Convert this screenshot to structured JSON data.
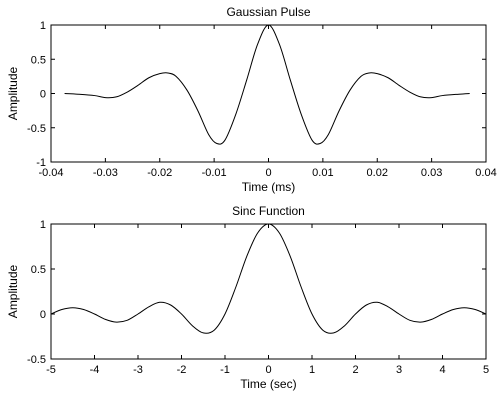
{
  "chart_data": [
    {
      "type": "line",
      "title": "Gaussian Pulse",
      "xlabel": "Time (ms)",
      "ylabel": "Amplitude",
      "xlim": [
        -0.04,
        0.04
      ],
      "ylim": [
        -1,
        1
      ],
      "xticks": [
        -0.04,
        -0.03,
        -0.02,
        -0.01,
        0,
        0.01,
        0.02,
        0.03,
        0.04
      ],
      "xtick_labels": [
        "-0.04",
        "-0.03",
        "-0.02",
        "-0.01",
        "0",
        "0.01",
        "0.02",
        "0.03",
        "0.04"
      ],
      "yticks": [
        -1,
        -0.5,
        0,
        0.5,
        1
      ],
      "ytick_labels": [
        "-1",
        "-0.5",
        "0",
        "0.5",
        "1"
      ],
      "grid": false,
      "series": [
        {
          "x": [
            -0.0375,
            -0.035,
            -0.032,
            -0.03,
            -0.028,
            -0.026,
            -0.024,
            -0.022,
            -0.02,
            -0.0185,
            -0.017,
            -0.015,
            -0.013,
            -0.011,
            -0.0095,
            -0.008,
            -0.006,
            -0.004,
            -0.002,
            0,
            0.002,
            0.004,
            0.006,
            0.008,
            0.0095,
            0.011,
            0.013,
            0.015,
            0.017,
            0.0185,
            0.02,
            0.022,
            0.024,
            0.026,
            0.028,
            0.03,
            0.032,
            0.035,
            0.037
          ],
          "y": [
            0.0,
            -0.01,
            -0.03,
            -0.06,
            -0.05,
            0.02,
            0.12,
            0.23,
            0.29,
            0.3,
            0.25,
            0.05,
            -0.25,
            -0.6,
            -0.73,
            -0.68,
            -0.3,
            0.2,
            0.72,
            1.0,
            0.72,
            0.2,
            -0.3,
            -0.68,
            -0.73,
            -0.6,
            -0.25,
            0.05,
            0.25,
            0.3,
            0.29,
            0.23,
            0.12,
            0.02,
            -0.05,
            -0.06,
            -0.03,
            -0.01,
            0.0
          ]
        }
      ]
    },
    {
      "type": "line",
      "title": "Sinc Function",
      "xlabel": "Time (sec)",
      "ylabel": "Amplitude",
      "xlim": [
        -5,
        5
      ],
      "ylim": [
        -0.5,
        1
      ],
      "xticks": [
        -5,
        -4,
        -3,
        -2,
        -1,
        0,
        1,
        2,
        3,
        4,
        5
      ],
      "xtick_labels": [
        "-5",
        "-4",
        "-3",
        "-2",
        "-1",
        "0",
        "1",
        "2",
        "3",
        "4",
        "5"
      ],
      "yticks": [
        -0.5,
        0,
        0.5,
        1
      ],
      "ytick_labels": [
        "-0.5",
        "0",
        "0.5",
        "1"
      ],
      "grid": false,
      "series": [
        {
          "x": [
            -5,
            -4.75,
            -4.5,
            -4.25,
            -4,
            -3.75,
            -3.5,
            -3.25,
            -3,
            -2.75,
            -2.5,
            -2.25,
            -2,
            -1.75,
            -1.5,
            -1.25,
            -1,
            -0.75,
            -0.5,
            -0.25,
            0,
            0.25,
            0.5,
            0.75,
            1,
            1.25,
            1.5,
            1.75,
            2,
            2.25,
            2.5,
            2.75,
            3,
            3.25,
            3.5,
            3.75,
            4,
            4.25,
            4.5,
            4.75,
            5
          ],
          "y": [
            0,
            0.05,
            0.07,
            0.05,
            0,
            -0.06,
            -0.09,
            -0.07,
            0,
            0.08,
            0.13,
            0.1,
            0,
            -0.13,
            -0.21,
            -0.18,
            0,
            0.3,
            0.64,
            0.9,
            1.0,
            0.9,
            0.64,
            0.3,
            0,
            -0.18,
            -0.21,
            -0.13,
            0,
            0.1,
            0.13,
            0.08,
            0,
            -0.07,
            -0.09,
            -0.06,
            0,
            0.05,
            0.07,
            0.05,
            0
          ]
        }
      ]
    }
  ]
}
